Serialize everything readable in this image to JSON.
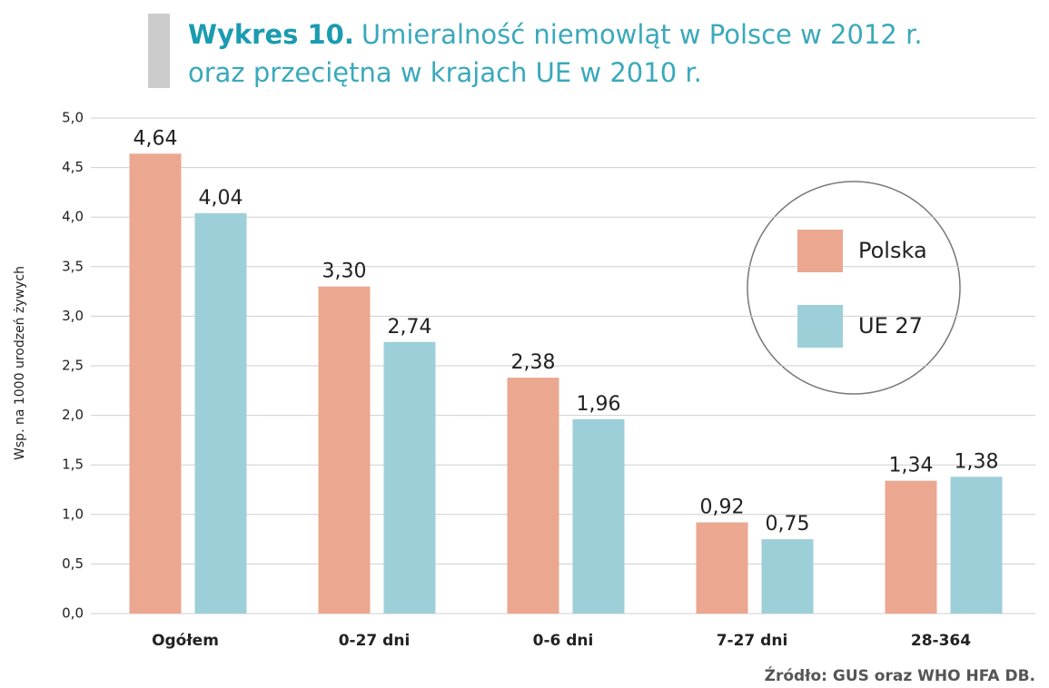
{
  "chart_data": {
    "type": "bar",
    "title_label": "Wykres 10.",
    "title": [
      "Umieralność niemowląt w Polsce w 2012 r.",
      "oraz przeciętna w krajach UE w 2010 r."
    ],
    "y_label": "Wsp. na 1000 urodzeń żywych",
    "source": "Źródło: GUS oraz WHO HFA DB.",
    "categories": [
      "Ogółem",
      "0-27 dni",
      "0-6 dni",
      "7-27 dni",
      "28-364"
    ],
    "series": [
      {
        "name": "Polska",
        "color": "#eba790",
        "values": [
          4.64,
          3.3,
          2.38,
          0.92,
          1.34
        ],
        "value_labels": [
          "4,64",
          "3,30",
          "2,38",
          "0,92",
          "1,34"
        ]
      },
      {
        "name": "UE 27",
        "color": "#9dcfd9",
        "values": [
          4.04,
          2.74,
          1.96,
          0.75,
          1.38
        ],
        "value_labels": [
          "4,04",
          "2,74",
          "1,96",
          "0,75",
          "1,38"
        ]
      }
    ],
    "ylim": [
      0,
      5
    ],
    "yticks": [
      {
        "value": 0,
        "label": "0,0"
      },
      {
        "value": 0.5,
        "label": "0,5"
      },
      {
        "value": 1,
        "label": "1,0"
      },
      {
        "value": 1.5,
        "label": "1,5"
      },
      {
        "value": 2,
        "label": "2,0"
      },
      {
        "value": 2.5,
        "label": "2,5"
      },
      {
        "value": 3,
        "label": "3,0"
      },
      {
        "value": 3.5,
        "label": "3,5"
      },
      {
        "value": 4,
        "label": "4,0"
      },
      {
        "value": 4.5,
        "label": "4,5"
      },
      {
        "value": 5,
        "label": "5,0"
      }
    ],
    "grid": true
  }
}
